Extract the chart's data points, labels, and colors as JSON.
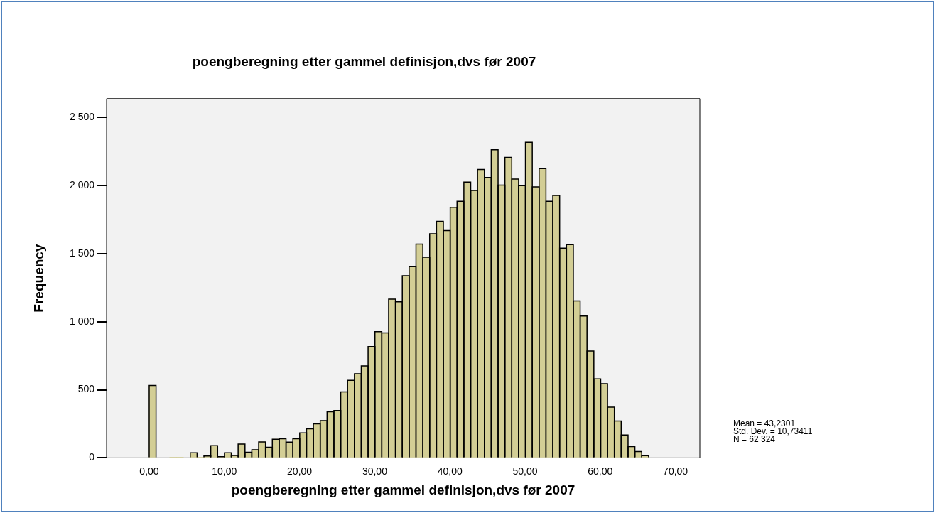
{
  "chart_data": {
    "type": "histogram",
    "title": "poengberegning etter gammel definisjon,dvs før 2007",
    "xlabel": "poengberegning etter gammel definisjon,dvs før 2007",
    "ylabel": "Frequency",
    "bins": [
      0,
      0.91,
      1.82,
      2.73,
      3.64,
      4.55,
      5.46,
      6.37,
      7.28,
      8.19,
      9.1,
      10.01,
      10.92,
      11.83,
      12.74,
      13.65,
      14.56,
      15.47,
      16.38,
      17.29,
      18.2,
      19.11,
      20.02,
      20.93,
      21.84,
      22.75,
      23.66,
      24.57,
      25.48,
      26.39,
      27.3,
      28.21,
      29.12,
      30.03,
      30.94,
      31.85,
      32.76,
      33.67,
      34.58,
      35.49,
      36.4,
      37.31,
      38.22,
      39.13,
      40.04,
      40.95,
      41.86,
      42.77,
      43.68,
      44.59,
      45.5,
      46.41,
      47.32,
      48.23,
      49.14,
      50.05,
      50.96,
      51.87,
      52.78,
      53.69,
      54.6,
      55.51,
      56.42,
      57.33,
      58.24,
      59.15,
      60.06,
      60.97,
      61.88,
      62.79,
      63.7,
      64.61,
      65.52,
      66.43
    ],
    "values": [
      532,
      0,
      0,
      5,
      5,
      0,
      37,
      5,
      14,
      90,
      9,
      37,
      18,
      101,
      41,
      60,
      117,
      78,
      137,
      140,
      115,
      140,
      183,
      213,
      250,
      273,
      339,
      348,
      484,
      569,
      617,
      675,
      817,
      927,
      918,
      1165,
      1145,
      1337,
      1404,
      1569,
      1473,
      1645,
      1736,
      1668,
      1839,
      1883,
      2025,
      1963,
      2117,
      2058,
      2262,
      2002,
      2206,
      2046,
      1998,
      2317,
      1989,
      2124,
      1883,
      1927,
      1539,
      1566,
      1152,
      1041,
      784,
      580,
      544,
      372,
      271,
      168,
      83,
      46,
      16
    ],
    "color": "#d3ce95",
    "xlim": [
      -5.67,
      73.25
    ],
    "xticks": [
      {
        "value": 0,
        "label": "0,00"
      },
      {
        "value": 10,
        "label": "10,00"
      },
      {
        "value": 20,
        "label": "20,00"
      },
      {
        "value": 30,
        "label": "30,00"
      },
      {
        "value": 40,
        "label": "40,00"
      },
      {
        "value": 50,
        "label": "50,00"
      },
      {
        "value": 60,
        "label": "60,00"
      },
      {
        "value": 70,
        "label": "70,00"
      }
    ],
    "ylim": [
      0,
      2637
    ],
    "yticks": [
      0,
      500,
      {
        "value": 1000,
        "label": "1 000"
      },
      {
        "value": 1500,
        "label": "1 500"
      },
      {
        "value": 2000,
        "label": "2 000"
      },
      {
        "value": 2500,
        "label": "2 500"
      }
    ],
    "grid": false,
    "legend": false,
    "annotations": [
      "Mean = 43,2301",
      "Std. Dev. = 10,73411",
      "N = 62 324"
    ]
  }
}
